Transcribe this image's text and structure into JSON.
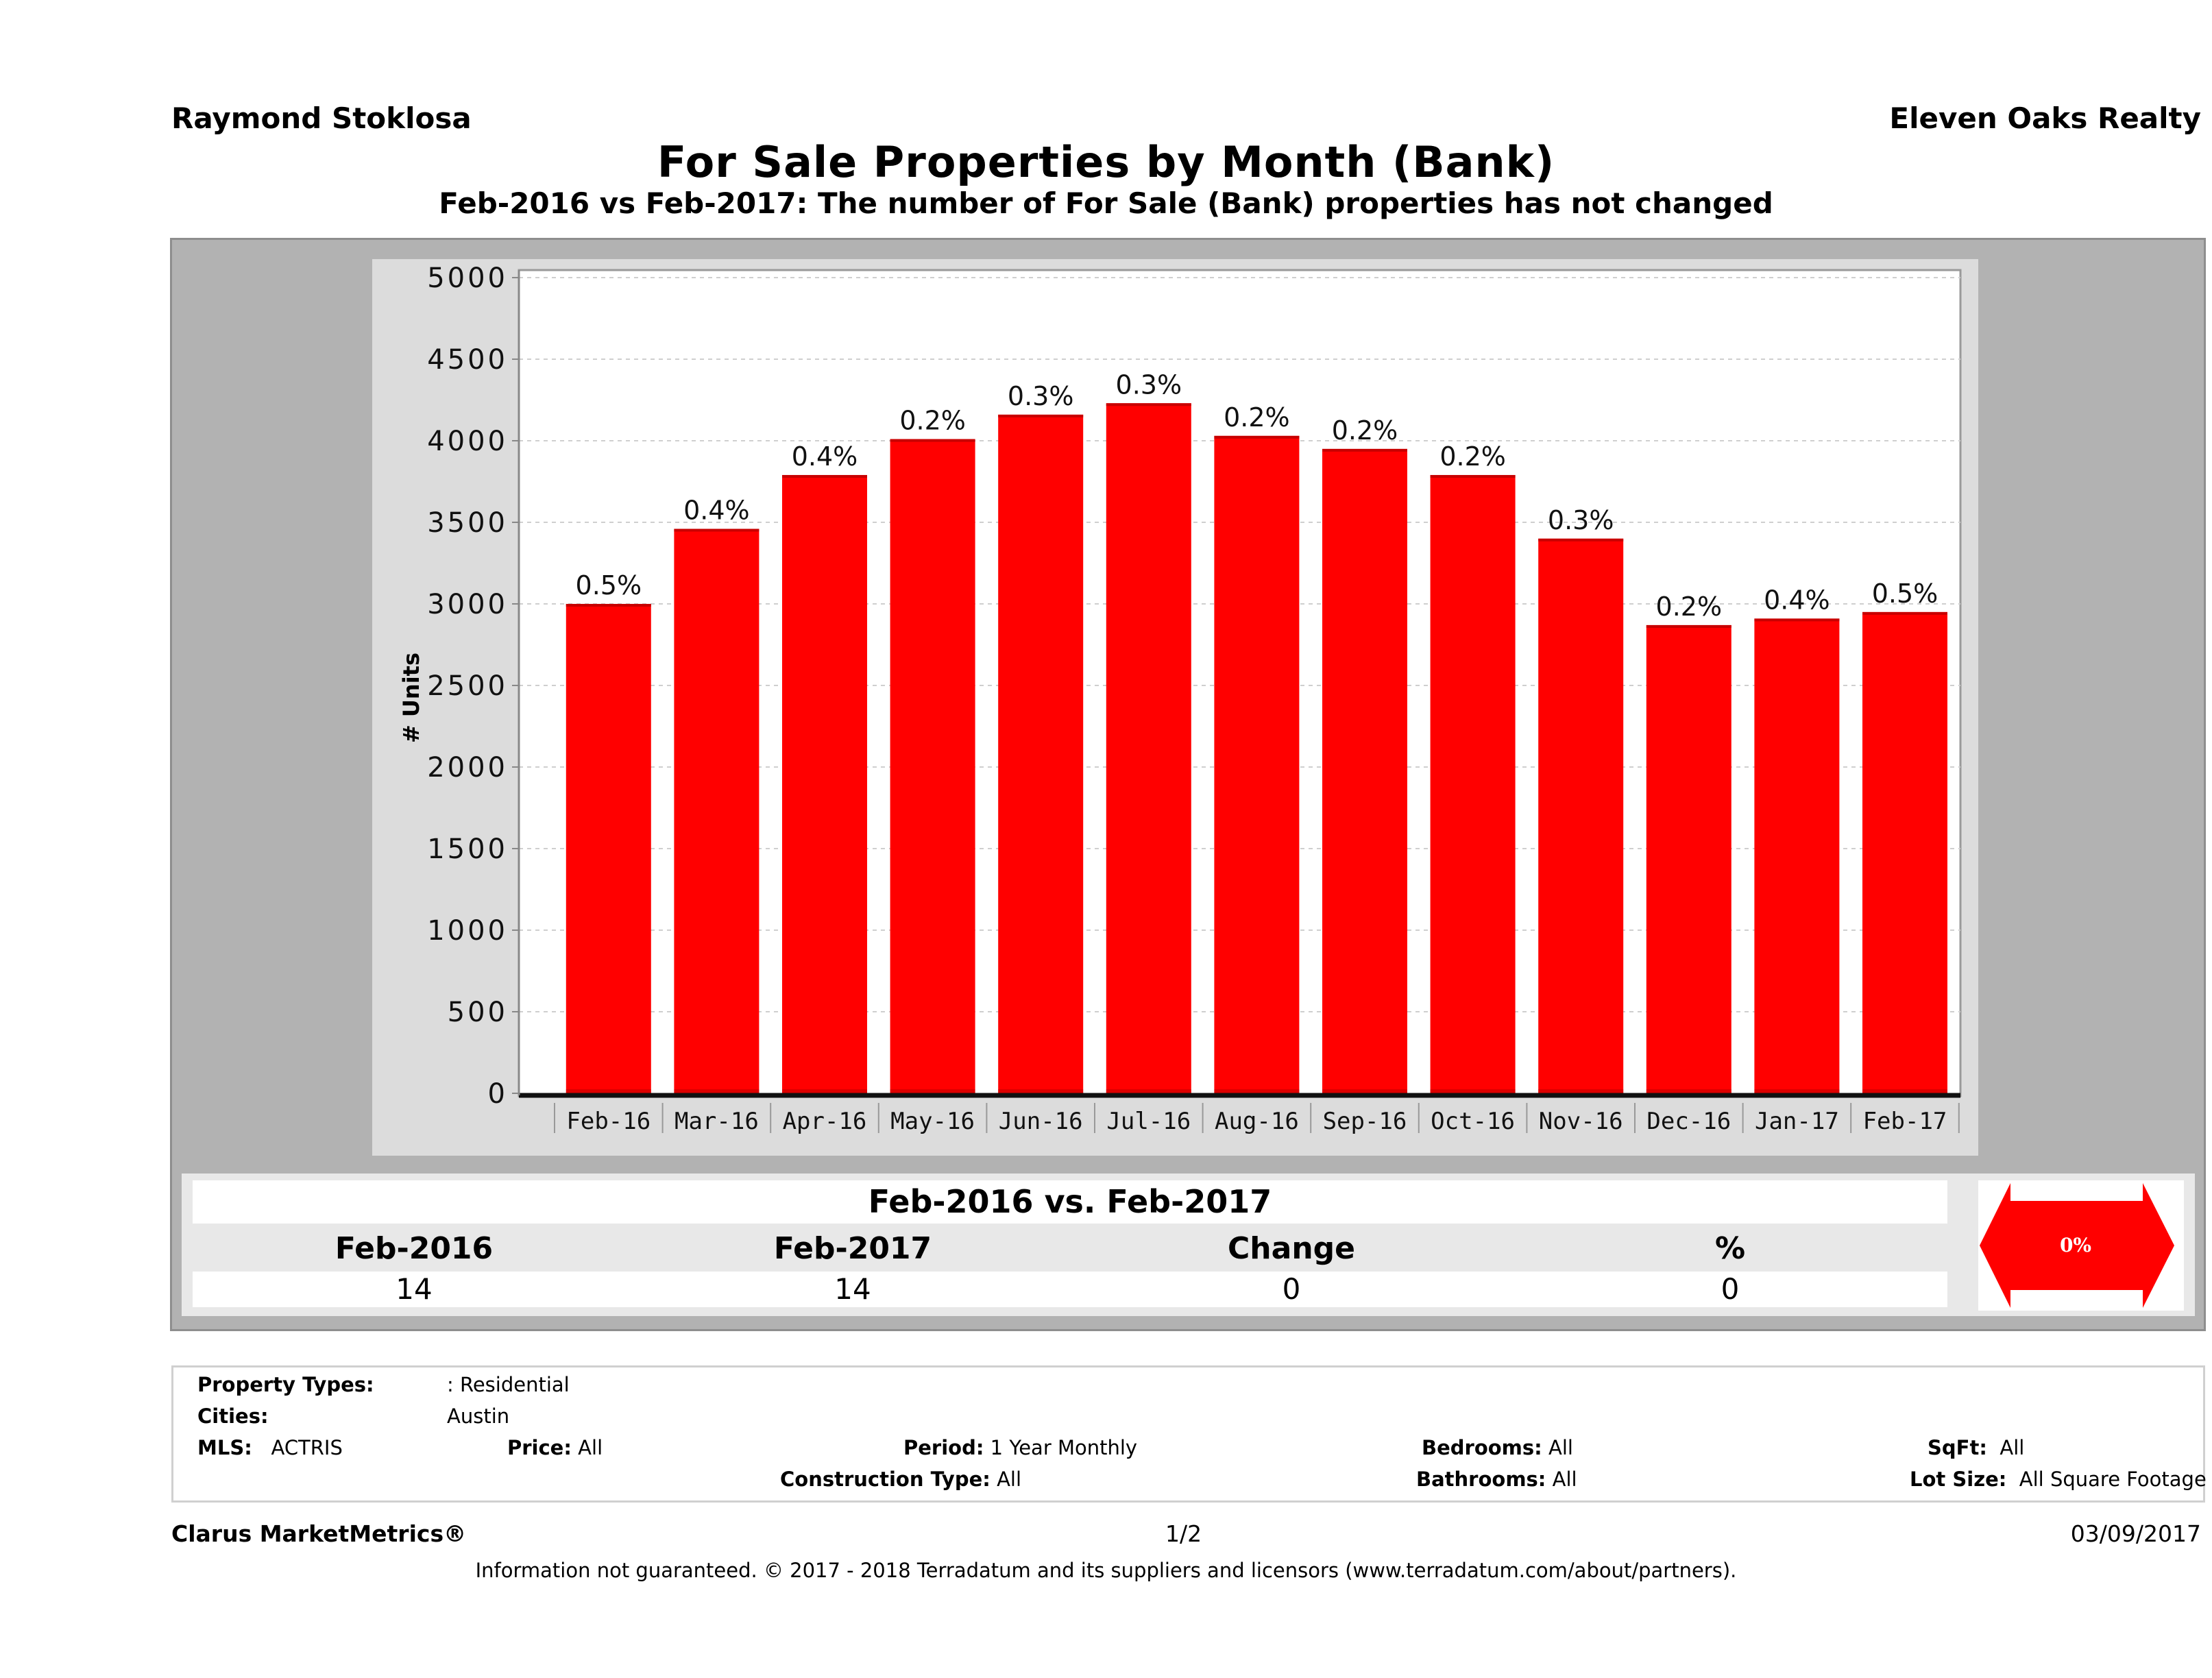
{
  "header": {
    "agent": "Raymond Stoklosa",
    "brokerage": "Eleven Oaks Realty",
    "title": "For Sale Properties by Month (Bank)",
    "subtitle": "Feb-2016 vs Feb-2017: The number of For Sale (Bank)  properties has not changed"
  },
  "colors": {
    "bar": "#ff0000",
    "bar_base": "#c80000",
    "plot_bg": "#ffffff",
    "chart_panel": "#dcdcdc",
    "outer_panel": "#b2b2b2",
    "badge": "#ff0000"
  },
  "chart_data": {
    "type": "bar",
    "title": "For Sale Properties by Month (Bank)",
    "xlabel": "",
    "ylabel": "# Units",
    "ylim": [
      0,
      5000
    ],
    "yticks": [
      0,
      500,
      1000,
      1500,
      2000,
      2500,
      3000,
      3500,
      4000,
      4500,
      5000
    ],
    "grid": true,
    "categories": [
      "Feb-16",
      "Mar-16",
      "Apr-16",
      "May-16",
      "Jun-16",
      "Jul-16",
      "Aug-16",
      "Sep-16",
      "Oct-16",
      "Nov-16",
      "Dec-16",
      "Jan-17",
      "Feb-17"
    ],
    "values": [
      3000,
      3460,
      3790,
      4010,
      4160,
      4230,
      4030,
      3950,
      3790,
      3400,
      2870,
      2910,
      2950
    ],
    "data_labels": [
      "0.5%",
      "0.4%",
      "0.4%",
      "0.2%",
      "0.3%",
      "0.3%",
      "0.2%",
      "0.2%",
      "0.2%",
      "0.3%",
      "0.2%",
      "0.4%",
      "0.5%"
    ]
  },
  "summary": {
    "title": "Feb-2016 vs. Feb-2017",
    "headers": [
      "Feb-2016",
      "Feb-2017",
      "Change",
      "%"
    ],
    "values": [
      "14",
      "14",
      "0",
      "0"
    ],
    "badge": "0%"
  },
  "criteria": {
    "property_types_label": "Property Types:",
    "property_types_value": ": Residential",
    "cities_label": "Cities:",
    "cities_value": "Austin",
    "mls_label": "MLS:",
    "mls_value": "ACTRIS",
    "price_label": "Price:",
    "price_value": "All",
    "period_label": "Period:",
    "period_value": "1 Year Monthly",
    "construction_label": "Construction Type:",
    "construction_value": "All",
    "bedrooms_label": "Bedrooms:",
    "bedrooms_value": "All",
    "bathrooms_label": "Bathrooms:",
    "bathrooms_value": "All",
    "sqft_label": "SqFt:",
    "sqft_value": "All",
    "lotsize_label": "Lot Size:",
    "lotsize_value": "All Square Footage"
  },
  "footer": {
    "product": "Clarus MarketMetrics®",
    "page": "1/2",
    "date": "03/09/2017",
    "disclaimer": "Information not guaranteed. © 2017 - 2018 Terradatum and its suppliers and licensors (www.terradatum.com/about/partners)."
  }
}
